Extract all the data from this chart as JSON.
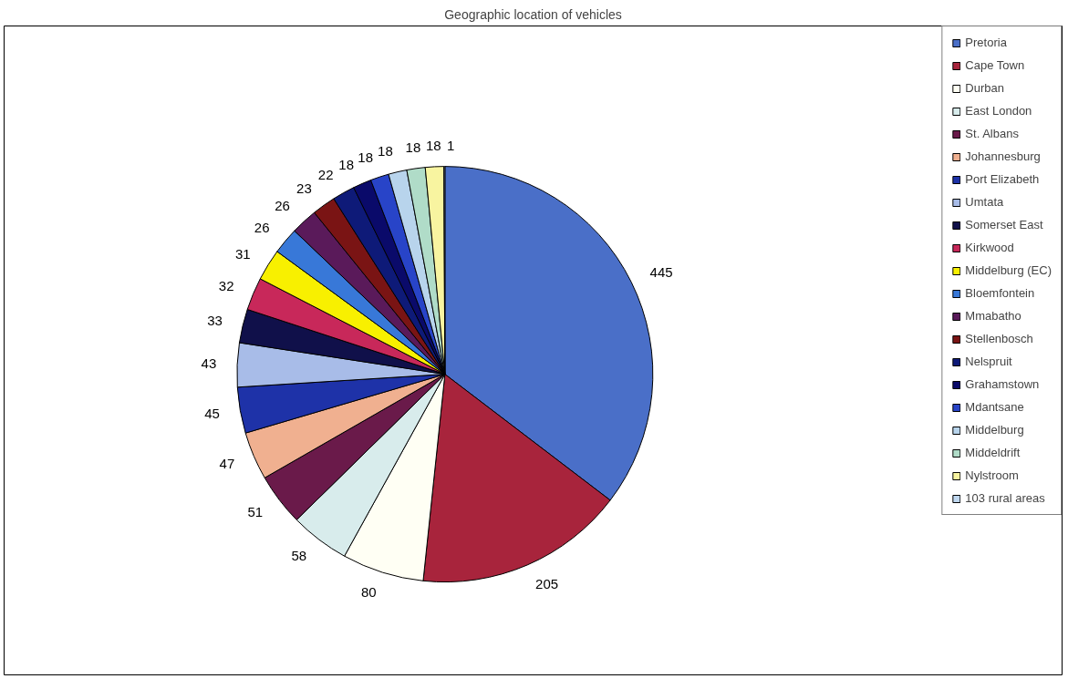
{
  "chart_data": {
    "type": "pie",
    "title": "Geographic location of vehicles",
    "categories": [
      "Pretoria",
      "Cape Town",
      "Durban",
      "East London",
      "St. Albans",
      "Johannesburg",
      "Port Elizabeth",
      "Umtata",
      "Somerset East",
      "Kirkwood",
      "Middelburg (EC)",
      "Bloemfontein",
      "Mmabatho",
      "Stellenbosch",
      "Nelspruit",
      "Grahamstown",
      "Mdantsane",
      "Middelburg",
      "Middeldrift",
      "Nylstroom",
      "103 rural areas"
    ],
    "values": [
      445,
      205,
      80,
      58,
      51,
      47,
      45,
      43,
      33,
      32,
      31,
      26,
      26,
      23,
      22,
      18,
      18,
      18,
      18,
      18,
      1
    ],
    "colors": [
      "#4a6fc8",
      "#a8243c",
      "#fffff4",
      "#d8ecec",
      "#6a1a4a",
      "#f0b090",
      "#1e32a8",
      "#a8bce8",
      "#10104a",
      "#c8285a",
      "#f8f000",
      "#3878d8",
      "#5a1a5a",
      "#7a1414",
      "#0e1a78",
      "#0a0a6a",
      "#2844c8",
      "#b8d4ec",
      "#b0dcc8",
      "#f8f4a0",
      "#c0d8f0"
    ],
    "data_labels": true,
    "legend": "right"
  }
}
